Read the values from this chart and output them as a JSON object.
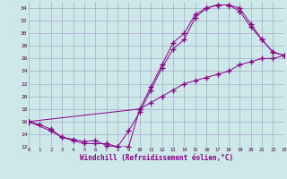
{
  "xlabel": "Windchill (Refroidissement éolien,°C)",
  "xlim": [
    0,
    23
  ],
  "ylim": [
    12,
    35
  ],
  "yticks": [
    12,
    14,
    16,
    18,
    20,
    22,
    24,
    26,
    28,
    30,
    32,
    34
  ],
  "xticks": [
    0,
    1,
    2,
    3,
    4,
    5,
    6,
    7,
    8,
    9,
    10,
    11,
    12,
    13,
    14,
    15,
    16,
    17,
    18,
    19,
    20,
    21,
    22,
    23
  ],
  "bg_color": "#cce8e8",
  "grid_color": "#aaaacc",
  "line_color": "#880088",
  "line1_x": [
    0,
    1,
    2,
    3,
    4,
    5,
    6,
    7,
    8,
    9,
    10,
    11,
    12,
    13,
    14,
    15,
    16,
    17,
    18,
    19,
    20,
    21,
    22,
    23
  ],
  "line1_y": [
    16,
    15.5,
    14.8,
    13.5,
    13.2,
    12.8,
    13.0,
    12.2,
    12.0,
    14.5,
    17.5,
    21.0,
    24.5,
    27.5,
    29.0,
    32.5,
    34.0,
    34.5,
    34.5,
    33.5,
    31.0,
    29.0,
    27.0,
    26.5
  ],
  "line2_x": [
    0,
    2,
    3,
    4,
    5,
    6,
    7,
    8,
    9,
    10,
    11,
    12,
    13,
    14,
    15,
    16,
    17,
    18,
    19,
    20,
    21,
    22,
    23
  ],
  "line2_y": [
    16,
    14.5,
    13.5,
    13.0,
    12.5,
    12.5,
    12.5,
    12.0,
    12.0,
    18.0,
    21.5,
    25.0,
    28.5,
    30.0,
    33.0,
    34.0,
    34.5,
    34.5,
    34.0,
    31.5,
    29.0,
    27.0,
    26.5
  ],
  "line3_x": [
    0,
    10,
    11,
    12,
    13,
    14,
    15,
    16,
    17,
    18,
    19,
    20,
    21,
    22,
    23
  ],
  "line3_y": [
    16,
    18.0,
    19.0,
    20.0,
    21.0,
    22.0,
    22.5,
    23.0,
    23.5,
    24.0,
    25.0,
    25.5,
    26.0,
    26.0,
    26.5
  ]
}
